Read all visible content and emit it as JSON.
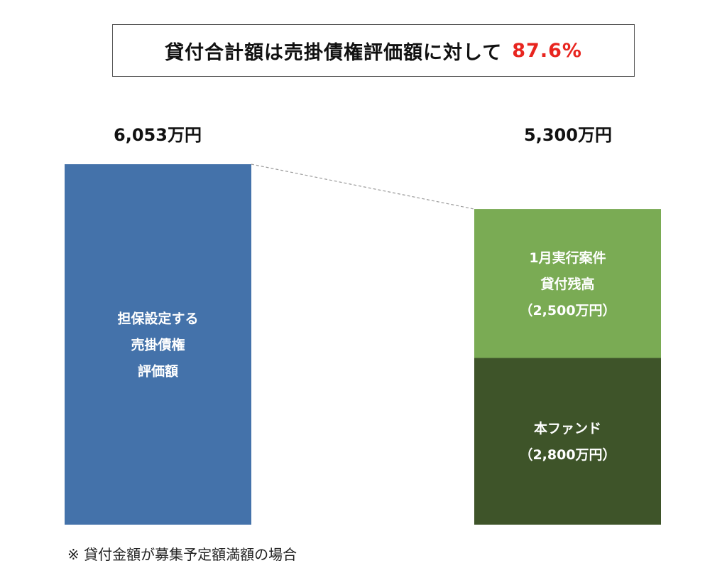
{
  "header": {
    "text": "貸付合計額は売掛債権評価額に対して",
    "percent": "87.6%",
    "percent_color": "#e8251f"
  },
  "chart_data": {
    "type": "bar",
    "stacked": true,
    "unit": "万円",
    "bars": [
      {
        "name": "collateral",
        "total_label": "6,053万円",
        "total": 6053,
        "segments": [
          {
            "lines": [
              "担保設定する",
              "売掛債権",
              "評価額"
            ],
            "value": 6053,
            "color": "#4472aa"
          }
        ]
      },
      {
        "name": "loans",
        "total_label": "5,300万円",
        "total": 5300,
        "segments": [
          {
            "lines": [
              "本ファンド",
              "（2,800万円）"
            ],
            "value": 2800,
            "color": "#3e5429"
          },
          {
            "lines": [
              "1月実行案件",
              "貸付残高",
              "（2,500万円）"
            ],
            "value": 2500,
            "color": "#7aab54"
          }
        ]
      }
    ],
    "connector": "dashed",
    "legend": "none",
    "grid": false
  },
  "footnote": "※ 貸付金額が募集予定額満額の場合"
}
